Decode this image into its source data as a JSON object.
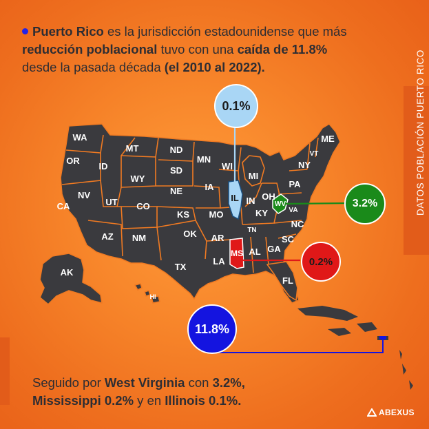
{
  "headline": {
    "part1_bold": "Puerto Rico",
    "part2": " es la jurisdicción estadounidense que más ",
    "part3_bold": "reducción poblacional",
    "part4": " tuvo con una ",
    "part5_bold": "caída de 11.8%",
    "part6": " desde la pasada década  ",
    "part7_bold": "(el 2010 al 2022)."
  },
  "side_label": "DATOS POBLACIÓN PUERTO RICO",
  "footer": {
    "part1": "Seguido por ",
    "part2_bold": "West Virginia",
    "part3": " con ",
    "part4_bold": "3.2%,",
    "part5_bold": "Mississippi 0.2%",
    "part6": " y en ",
    "part7_bold": "Illinois 0.1%."
  },
  "callouts": [
    {
      "state": "Illinois",
      "value": "0.1%",
      "color": "#a9d6f5"
    },
    {
      "state": "West Virginia",
      "value": "3.2%",
      "color": "#1a8a1a"
    },
    {
      "state": "Mississippi",
      "value": "0.2%",
      "color": "#e01818"
    },
    {
      "state": "Puerto Rico",
      "value": "11.8%",
      "color": "#1414e0"
    }
  ],
  "state_labels": [
    "WA",
    "OR",
    "CA",
    "ID",
    "NV",
    "MT",
    "WY",
    "UT",
    "AZ",
    "CO",
    "NM",
    "ND",
    "SD",
    "NE",
    "KS",
    "OK",
    "TX",
    "MN",
    "IA",
    "MO",
    "AR",
    "LA",
    "WI",
    "IL",
    "MI",
    "IN",
    "OH",
    "KY",
    "TN",
    "MS",
    "AL",
    "GA",
    "FL",
    "SC",
    "NC",
    "VA",
    "WV",
    "PA",
    "NY",
    "VT",
    "ME",
    "AK",
    "HI"
  ],
  "colors": {
    "map_fill": "#3a3a3e",
    "map_border": "#f07a22",
    "accent": "#2323e6"
  },
  "brand": "ABEXUS"
}
